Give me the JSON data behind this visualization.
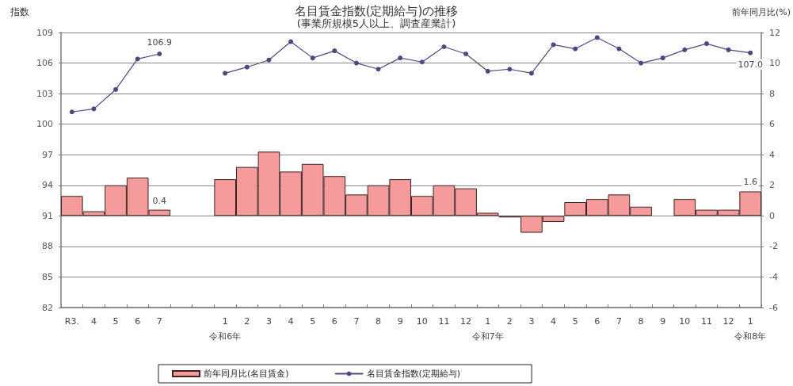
{
  "chart_data": {
    "type": "bar",
    "title": "名目賃金指数(定期給与)の推移",
    "subtitle": "(事業所規模5人以上、調査産業計)",
    "ylabel": "指数",
    "y2label": "前年同月比(%)",
    "categories": [
      "R3.",
      "4",
      "5",
      "6",
      "7",
      null,
      null,
      "1\n令和6年",
      "2",
      "3",
      "4",
      "5",
      "6",
      "7",
      "8",
      "9",
      "10",
      "11",
      "12",
      "1\n令和7年",
      "2",
      "3",
      "4",
      "5",
      "6",
      "7",
      "8",
      "9",
      "10",
      "11",
      "12",
      "1\n令和8年"
    ],
    "series": [
      {
        "name": "前年同月比(名目賃金)",
        "axis": "y2",
        "color": "#f59b9b",
        "values": [
          1.3,
          0.3,
          2.0,
          2.5,
          0.4,
          null,
          null,
          2.4,
          3.2,
          4.2,
          2.9,
          3.4,
          2.6,
          1.4,
          2.0,
          2.4,
          1.3,
          2.0,
          1.8,
          0.2,
          -0.1,
          -1.1,
          -0.4,
          0.9,
          1.1,
          1.4,
          0.6,
          null,
          1.1,
          0.4,
          0.4,
          1.6
        ],
        "value_labels": [
          null,
          null,
          null,
          null,
          "0.4",
          null,
          null,
          null,
          null,
          null,
          null,
          null,
          null,
          null,
          null,
          null,
          null,
          null,
          null,
          null,
          null,
          null,
          null,
          null,
          null,
          null,
          null,
          null,
          null,
          null,
          null,
          "1.6"
        ]
      },
      {
        "name": "名目賃金指数(定期給与)",
        "type": "line",
        "color": "#4a4a80",
        "values": [
          101.2,
          101.5,
          103.4,
          106.4,
          106.9,
          null,
          null,
          105.0,
          105.6,
          106.3,
          108.1,
          106.5,
          107.2,
          106.0,
          105.4,
          106.5,
          106.1,
          107.6,
          106.9,
          105.2,
          105.4,
          105.0,
          107.8,
          107.4,
          108.5,
          107.4,
          106.0,
          106.5,
          107.3,
          107.9,
          107.3,
          107.0
        ],
        "value_labels": [
          null,
          null,
          null,
          null,
          "106.9",
          null,
          null,
          null,
          null,
          null,
          null,
          null,
          null,
          null,
          null,
          null,
          null,
          null,
          null,
          null,
          null,
          null,
          null,
          null,
          null,
          null,
          null,
          null,
          null,
          null,
          null,
          "107.0"
        ]
      }
    ],
    "ylim": [
      82,
      109
    ],
    "yticks": [
      82,
      85,
      88,
      91,
      94,
      97,
      100,
      103,
      106,
      109
    ],
    "y2lim": [
      -6,
      12
    ],
    "y2ticks": [
      -6,
      -4,
      -2,
      0,
      2,
      4,
      6,
      8,
      10,
      12
    ],
    "grid": "y",
    "legend": "bottom",
    "marker": "circle"
  }
}
